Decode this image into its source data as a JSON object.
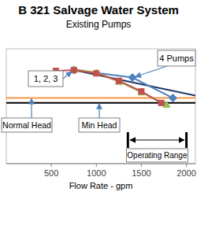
{
  "chart_data": {
    "type": "line",
    "title": "B 321 Salvage Water System",
    "subtitle": "Existing Pumps",
    "x_label": "Flow Rate - gpm",
    "xlim": [
      0,
      2100
    ],
    "xticks": [
      500,
      1000,
      1500,
      2000
    ],
    "ylim": [
      0,
      140
    ],
    "yticks": [],
    "tick_labels": "x",
    "grid": false,
    "series": [
      {
        "color": "#c0504d",
        "marker": "square",
        "line_style": "solid",
        "x": [
          550,
          750,
          1000,
          1250,
          1500,
          1720
        ],
        "values": [
          113,
          114,
          110,
          101,
          88,
          74
        ]
      },
      {
        "color": "#9bbb59",
        "marker": "triangle",
        "line_style": "solid",
        "x": [
          750,
          1000,
          1250,
          1500,
          1780
        ],
        "values": [
          115,
          111,
          100,
          87,
          72
        ]
      },
      {
        "color": "#4f81bd",
        "marker": "diamond",
        "line_style": "solid",
        "x": [
          750,
          1400,
          1850
        ],
        "values": [
          114,
          105,
          80
        ]
      },
      {
        "color": "#1f3864",
        "marker": "none",
        "line_style": "solid",
        "x": [
          750,
          2100
        ],
        "values": [
          114,
          83
        ]
      },
      {
        "color": "#f79646",
        "marker": "none",
        "line_style": "solid",
        "x": [
          0,
          2100
        ],
        "values": [
          80,
          80
        ]
      },
      {
        "color": "#000000",
        "marker": "none",
        "line_style": "solid",
        "x": [
          0,
          2100
        ],
        "values": [
          74,
          74
        ]
      }
    ],
    "annotations": [
      "1, 2, 3",
      "4 Pumps",
      "Normal Head",
      "Min Head",
      "Operating Range"
    ],
    "operating_range": [
      1350,
      2000
    ]
  }
}
